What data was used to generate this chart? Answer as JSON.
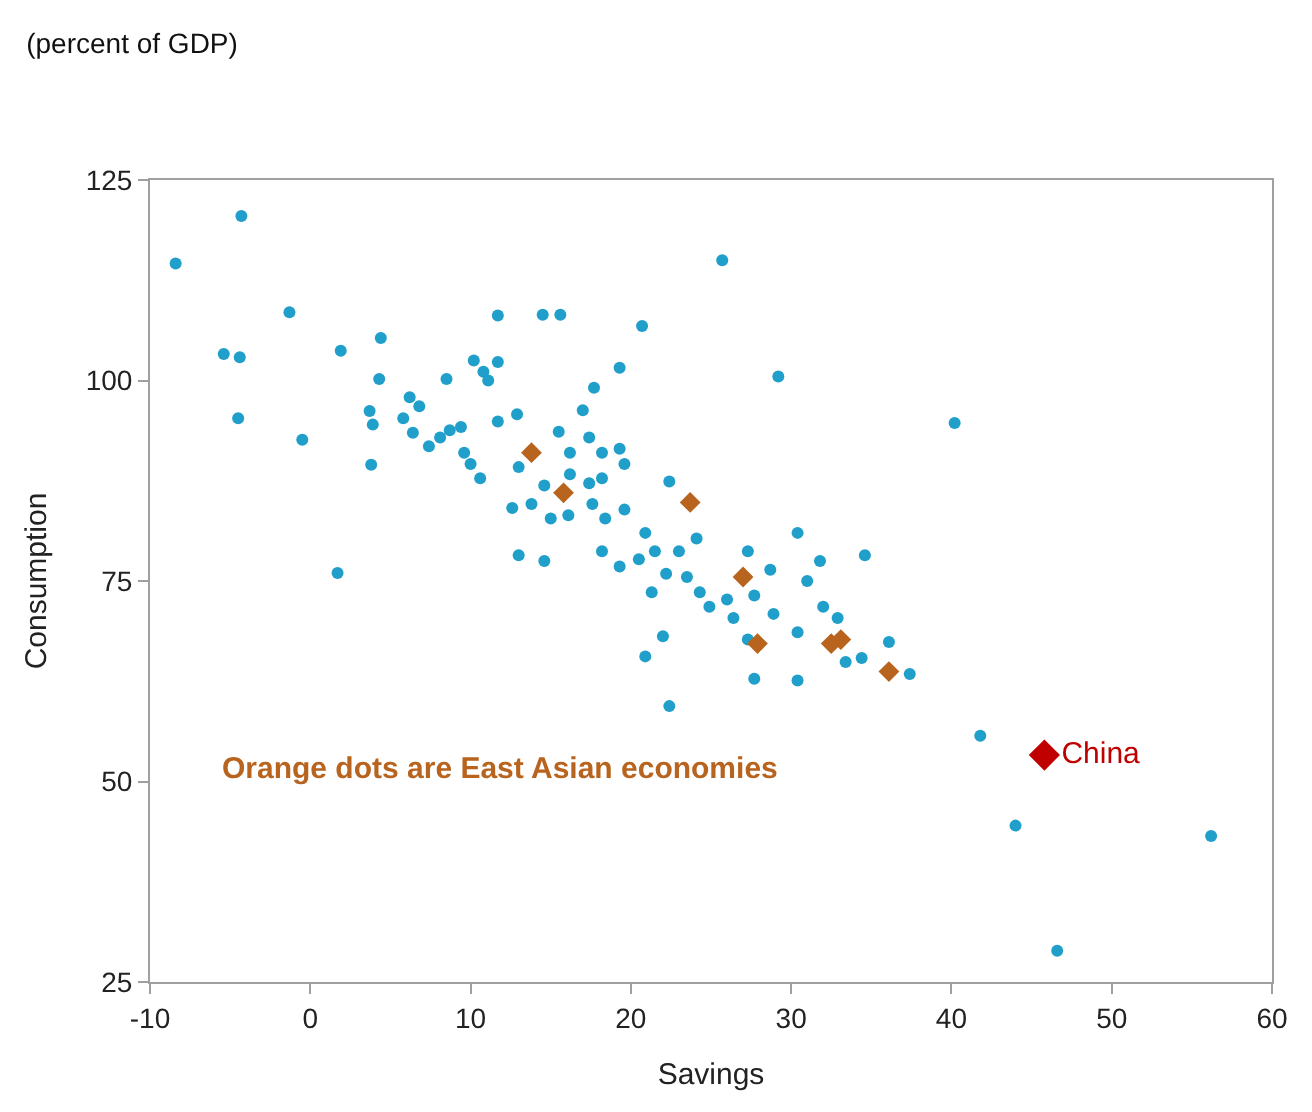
{
  "chart_data": {
    "type": "scatter",
    "title": "(percent of GDP)",
    "xlabel": "Savings",
    "ylabel": "Consumption",
    "xlim": [
      -10,
      60
    ],
    "xticks": [
      -10,
      0,
      10,
      20,
      30,
      40,
      50,
      60
    ],
    "ylim": [
      25,
      125
    ],
    "yticks": [
      25,
      50,
      75,
      100,
      125
    ],
    "legend": false,
    "annotations": [
      "Orange dots are East Asian economies"
    ],
    "series": [
      {
        "color": "#1f9fc9",
        "marker": "circle",
        "x": [
          -8.4,
          -4.3,
          -1.3,
          -5.4,
          -4.4,
          -4.5,
          -0.5,
          1.9,
          4.4,
          4.3,
          1.7,
          3.7,
          3.9,
          3.8,
          5.8,
          6.2,
          6.8,
          6.4,
          8.5,
          7.4,
          8.1,
          8.7,
          9.4,
          9.6,
          10.0,
          10.6,
          11.7,
          10.2,
          10.8,
          11.1,
          11.7,
          11.7,
          12.9,
          13.0,
          12.6,
          13.0,
          25.7,
          14.5,
          15.6,
          20.7,
          29.2,
          19.3,
          17.7,
          17.0,
          15.5,
          17.4,
          18.2,
          19.3,
          19.6,
          16.2,
          16.2,
          14.6,
          17.4,
          18.2,
          13.8,
          15.0,
          16.1,
          17.6,
          18.4,
          19.6,
          22.4,
          14.6,
          18.2,
          19.3,
          20.5,
          20.9,
          21.5,
          21.3,
          22.2,
          23.0,
          23.5,
          24.1,
          24.3,
          24.9,
          26.0,
          26.4,
          27.3,
          28.7,
          27.7,
          28.9,
          30.4,
          31.0,
          31.8,
          32.0,
          34.6,
          32.9,
          30.4,
          22.0,
          20.9,
          22.4,
          27.3,
          27.7,
          30.4,
          33.4,
          34.4,
          36.1,
          37.4,
          40.2,
          41.8,
          44.0,
          56.2,
          46.6
        ],
        "values": [
          114.6,
          120.5,
          108.5,
          103.3,
          102.9,
          95.3,
          92.6,
          103.7,
          105.3,
          100.2,
          76.0,
          96.2,
          94.5,
          89.5,
          95.3,
          97.9,
          96.8,
          93.5,
          100.2,
          91.8,
          92.9,
          93.8,
          94.2,
          91.0,
          89.6,
          87.8,
          108.1,
          102.5,
          101.1,
          100.0,
          102.3,
          94.9,
          95.8,
          89.2,
          84.1,
          78.2,
          115.0,
          108.2,
          108.2,
          106.8,
          100.5,
          101.6,
          99.1,
          96.3,
          93.6,
          92.9,
          91.0,
          91.5,
          89.6,
          91.0,
          88.3,
          86.9,
          87.2,
          87.8,
          84.6,
          82.8,
          83.2,
          84.6,
          82.8,
          83.9,
          87.4,
          77.5,
          78.7,
          76.8,
          77.7,
          81.0,
          78.7,
          73.6,
          75.9,
          78.7,
          75.5,
          80.3,
          73.6,
          71.8,
          72.7,
          70.4,
          78.7,
          76.4,
          73.2,
          70.9,
          81.0,
          75.0,
          77.5,
          71.8,
          78.2,
          70.4,
          68.6,
          68.1,
          65.6,
          59.4,
          67.7,
          62.8,
          62.6,
          64.9,
          65.4,
          67.4,
          63.4,
          94.7,
          55.7,
          44.5,
          43.2,
          28.9
        ]
      },
      {
        "color": "#b8641e",
        "marker": "diamond",
        "x": [
          13.8,
          15.8,
          23.7,
          27.0,
          27.9,
          32.5,
          33.1,
          36.1
        ],
        "values": [
          91.0,
          86.0,
          84.8,
          75.5,
          67.2,
          67.2,
          67.7,
          63.7
        ]
      },
      {
        "name": "China",
        "color": "#c00000",
        "marker": "diamond",
        "x": [
          45.8
        ],
        "values": [
          53.3
        ]
      }
    ]
  }
}
